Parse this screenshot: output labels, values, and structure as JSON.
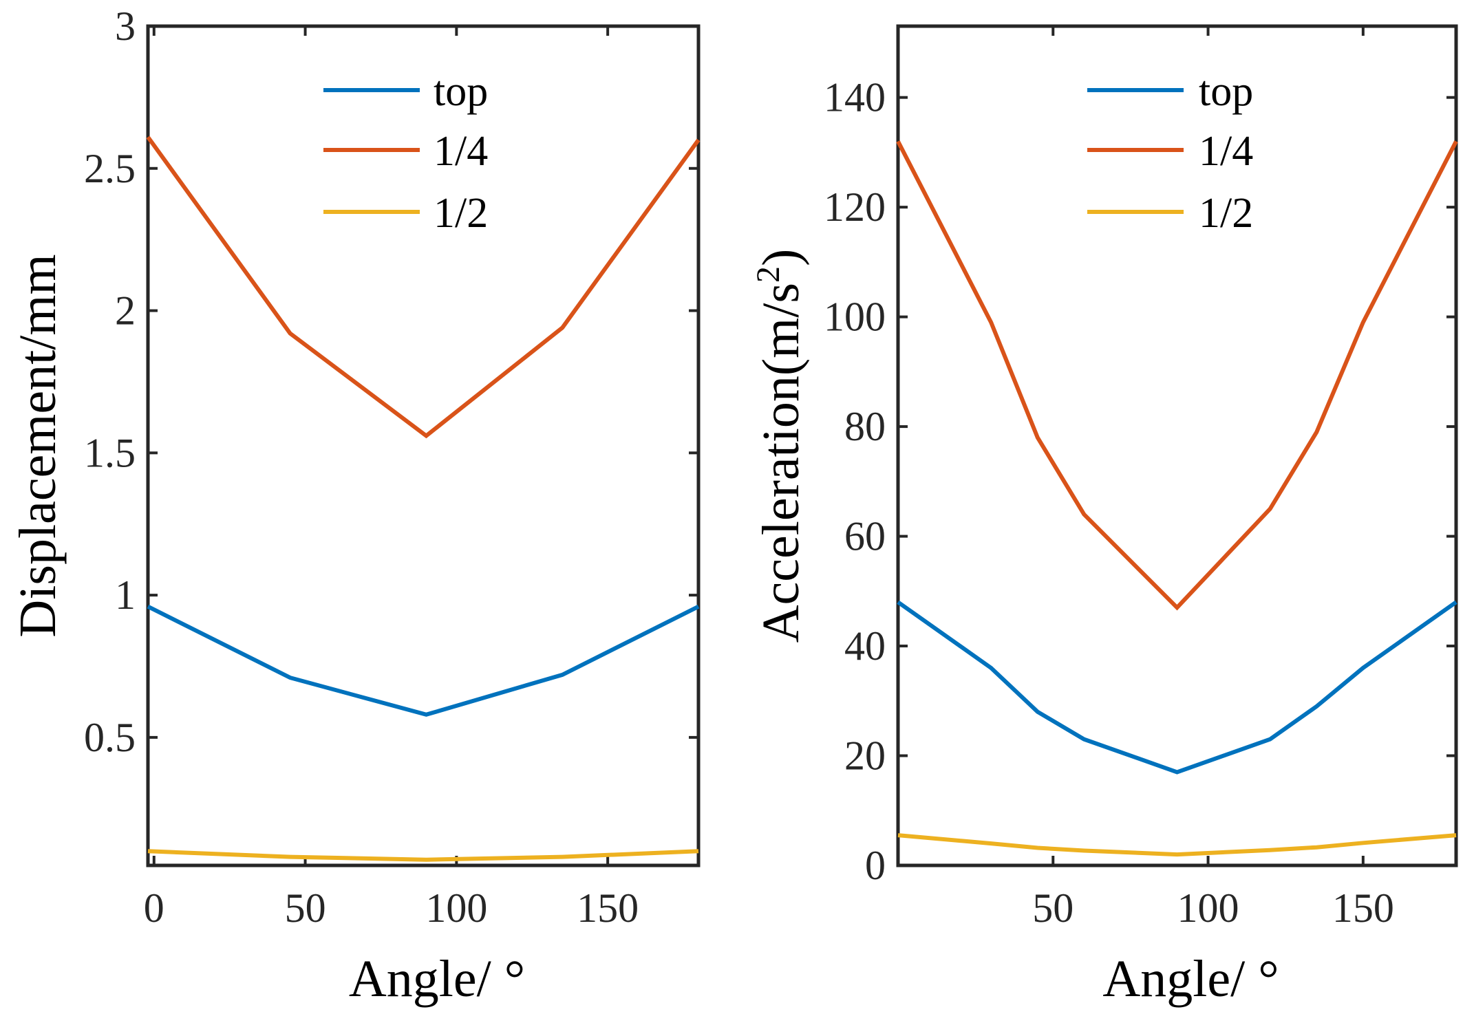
{
  "chart_data": [
    {
      "type": "line",
      "xlabel": "Angle/ °",
      "ylabel": "Displacement/mm",
      "xlim": [
        -2,
        180
      ],
      "ylim": [
        0.05,
        3
      ],
      "xticks": [
        0,
        50,
        100,
        150
      ],
      "xtick_labels": [
        "0",
        "50",
        "100",
        "150"
      ],
      "yticks": [
        0.5,
        1,
        1.5,
        2,
        2.5,
        3
      ],
      "ytick_labels": [
        "0.5",
        "1",
        "1.5",
        "2",
        "2.5",
        "3"
      ],
      "legend_position": "top-center",
      "series": [
        {
          "name": "top",
          "color": "#0072BD",
          "x": [
            -2,
            45,
            90,
            135,
            180
          ],
          "y": [
            0.96,
            0.71,
            0.58,
            0.72,
            0.96
          ]
        },
        {
          "name": "1/4",
          "color": "#D95319",
          "x": [
            -2,
            45,
            90,
            135,
            180
          ],
          "y": [
            2.61,
            1.92,
            1.56,
            1.94,
            2.6
          ]
        },
        {
          "name": "1/2",
          "color": "#EDB120",
          "x": [
            -2,
            45,
            90,
            135,
            180
          ],
          "y": [
            0.1,
            0.08,
            0.07,
            0.08,
            0.1
          ]
        }
      ]
    },
    {
      "type": "line",
      "xlabel": "Angle/ °",
      "ylabel": "Acceleration(m/s",
      "ylabel_sup": "2",
      "ylabel_end": ")",
      "xlim": [
        0,
        180
      ],
      "ylim": [
        0,
        153
      ],
      "xticks": [
        50,
        100,
        150
      ],
      "xtick_labels": [
        "50",
        "100",
        "150"
      ],
      "yticks": [
        0,
        20,
        40,
        60,
        80,
        100,
        120,
        140
      ],
      "ytick_labels": [
        "0",
        "20",
        "40",
        "60",
        "80",
        "100",
        "120",
        "140"
      ],
      "legend_position": "top-center",
      "series": [
        {
          "name": "top",
          "color": "#0072BD",
          "x": [
            0,
            30,
            45,
            60,
            90,
            120,
            135,
            150,
            180
          ],
          "y": [
            48,
            36,
            28,
            23,
            17,
            23,
            29,
            36,
            48
          ]
        },
        {
          "name": "1/4",
          "color": "#D95319",
          "x": [
            0,
            30,
            45,
            60,
            90,
            120,
            135,
            150,
            180
          ],
          "y": [
            132,
            99,
            78,
            64,
            47,
            65,
            79,
            99,
            132
          ]
        },
        {
          "name": "1/2",
          "color": "#EDB120",
          "x": [
            0,
            30,
            45,
            60,
            90,
            120,
            135,
            150,
            180
          ],
          "y": [
            5.5,
            4,
            3.2,
            2.7,
            2,
            2.8,
            3.3,
            4.1,
            5.5
          ]
        }
      ]
    }
  ]
}
